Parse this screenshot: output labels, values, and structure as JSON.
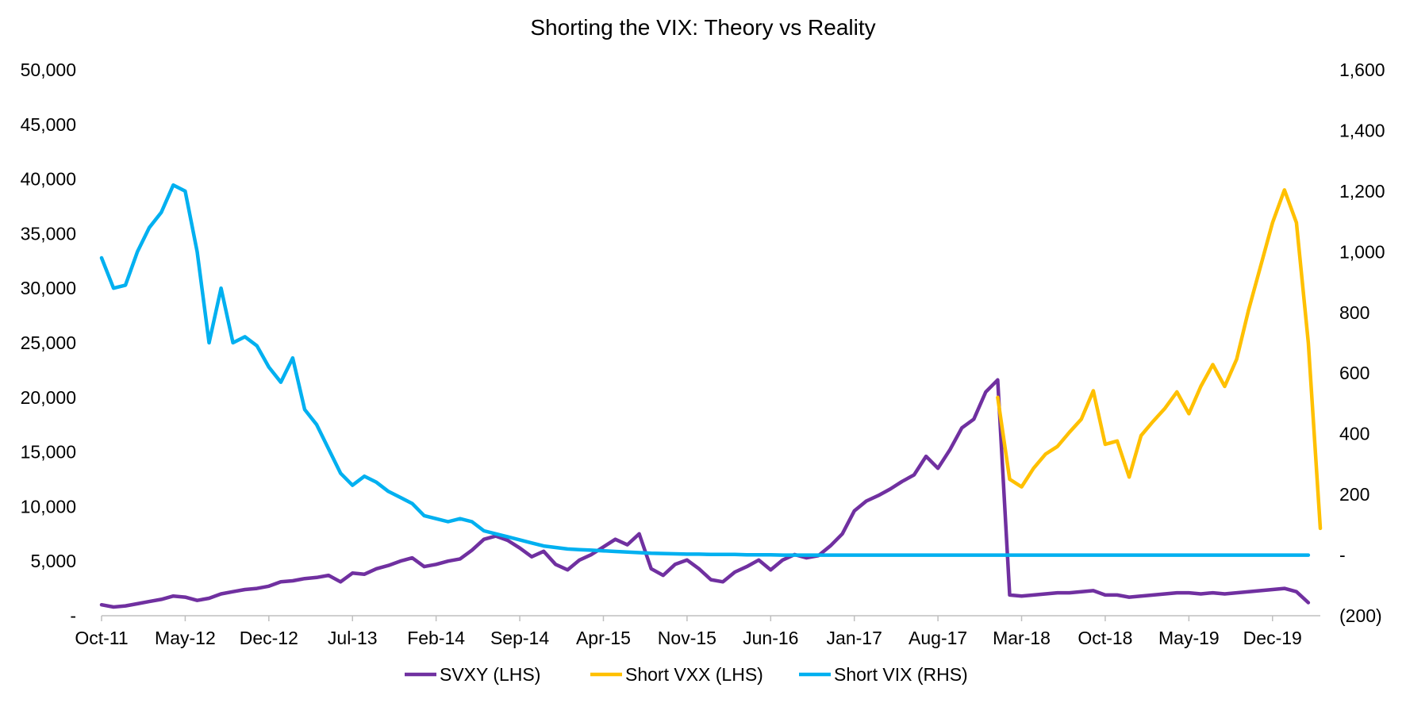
{
  "chart_data": {
    "type": "line",
    "title": "Shorting the VIX: Theory vs Reality",
    "x_tick_labels": [
      "Oct-11",
      "May-12",
      "Dec-12",
      "Jul-13",
      "Feb-14",
      "Sep-14",
      "Apr-15",
      "Nov-15",
      "Jun-16",
      "Jan-17",
      "Aug-17",
      "Mar-18",
      "Oct-18",
      "May-19",
      "Dec-19"
    ],
    "left_axis": {
      "ylim": [
        0,
        50000
      ],
      "tick_values": [
        0,
        5000,
        10000,
        15000,
        20000,
        25000,
        30000,
        35000,
        40000,
        45000,
        50000
      ],
      "tick_labels": [
        "-",
        "5,000",
        "10,000",
        "15,000",
        "20,000",
        "25,000",
        "30,000",
        "35,000",
        "40,000",
        "45,000",
        "50,000"
      ]
    },
    "right_axis": {
      "ylim": [
        -200,
        1600
      ],
      "tick_values": [
        -200,
        0,
        200,
        400,
        600,
        800,
        1000,
        1200,
        1400,
        1600
      ],
      "tick_labels": [
        "(200)",
        "-",
        "200",
        "400",
        "600",
        "800",
        "1,000",
        "1,200",
        "1,400",
        "1,600"
      ]
    },
    "grid": false,
    "legend_position": "bottom",
    "series": [
      {
        "name": "SVXY (LHS)",
        "axis": "left",
        "color": "#7030a0",
        "points": [
          [
            "2011-10",
            1000
          ],
          [
            "2011-11",
            800
          ],
          [
            "2011-12",
            900
          ],
          [
            "2012-01",
            1100
          ],
          [
            "2012-02",
            1300
          ],
          [
            "2012-03",
            1500
          ],
          [
            "2012-04",
            1800
          ],
          [
            "2012-05",
            1700
          ],
          [
            "2012-06",
            1400
          ],
          [
            "2012-07",
            1600
          ],
          [
            "2012-08",
            2000
          ],
          [
            "2012-09",
            2200
          ],
          [
            "2012-10",
            2400
          ],
          [
            "2012-11",
            2500
          ],
          [
            "2012-12",
            2700
          ],
          [
            "2013-01",
            3100
          ],
          [
            "2013-02",
            3200
          ],
          [
            "2013-03",
            3400
          ],
          [
            "2013-04",
            3500
          ],
          [
            "2013-05",
            3700
          ],
          [
            "2013-06",
            3100
          ],
          [
            "2013-07",
            3900
          ],
          [
            "2013-08",
            3800
          ],
          [
            "2013-09",
            4300
          ],
          [
            "2013-10",
            4600
          ],
          [
            "2013-11",
            5000
          ],
          [
            "2013-12",
            5300
          ],
          [
            "2014-01",
            4500
          ],
          [
            "2014-02",
            4700
          ],
          [
            "2014-03",
            5000
          ],
          [
            "2014-04",
            5200
          ],
          [
            "2014-05",
            6000
          ],
          [
            "2014-06",
            7000
          ],
          [
            "2014-07",
            7300
          ],
          [
            "2014-08",
            6900
          ],
          [
            "2014-09",
            6200
          ],
          [
            "2014-10",
            5400
          ],
          [
            "2014-11",
            5900
          ],
          [
            "2014-12",
            4700
          ],
          [
            "2015-01",
            4200
          ],
          [
            "2015-02",
            5100
          ],
          [
            "2015-03",
            5600
          ],
          [
            "2015-04",
            6300
          ],
          [
            "2015-05",
            7000
          ],
          [
            "2015-06",
            6500
          ],
          [
            "2015-07",
            7500
          ],
          [
            "2015-08",
            4300
          ],
          [
            "2015-09",
            3700
          ],
          [
            "2015-10",
            4700
          ],
          [
            "2015-11",
            5100
          ],
          [
            "2015-12",
            4300
          ],
          [
            "2016-01",
            3300
          ],
          [
            "2016-02",
            3100
          ],
          [
            "2016-03",
            4000
          ],
          [
            "2016-04",
            4500
          ],
          [
            "2016-05",
            5100
          ],
          [
            "2016-06",
            4200
          ],
          [
            "2016-07",
            5100
          ],
          [
            "2016-08",
            5600
          ],
          [
            "2016-09",
            5300
          ],
          [
            "2016-10",
            5500
          ],
          [
            "2016-11",
            6400
          ],
          [
            "2016-12",
            7500
          ],
          [
            "2017-01",
            9600
          ],
          [
            "2017-02",
            10500
          ],
          [
            "2017-03",
            11000
          ],
          [
            "2017-04",
            11600
          ],
          [
            "2017-05",
            12300
          ],
          [
            "2017-06",
            12900
          ],
          [
            "2017-07",
            14600
          ],
          [
            "2017-08",
            13500
          ],
          [
            "2017-09",
            15200
          ],
          [
            "2017-10",
            17200
          ],
          [
            "2017-11",
            18000
          ],
          [
            "2017-12",
            20500
          ],
          [
            "2018-01",
            21600
          ],
          [
            "2018-02",
            1900
          ],
          [
            "2018-03",
            1800
          ],
          [
            "2018-04",
            1900
          ],
          [
            "2018-05",
            2000
          ],
          [
            "2018-06",
            2100
          ],
          [
            "2018-07",
            2100
          ],
          [
            "2018-08",
            2200
          ],
          [
            "2018-09",
            2300
          ],
          [
            "2018-10",
            1900
          ],
          [
            "2018-11",
            1900
          ],
          [
            "2018-12",
            1700
          ],
          [
            "2019-01",
            1800
          ],
          [
            "2019-02",
            1900
          ],
          [
            "2019-03",
            2000
          ],
          [
            "2019-04",
            2100
          ],
          [
            "2019-05",
            2100
          ],
          [
            "2019-06",
            2000
          ],
          [
            "2019-07",
            2100
          ],
          [
            "2019-08",
            2000
          ],
          [
            "2019-09",
            2100
          ],
          [
            "2019-10",
            2200
          ],
          [
            "2019-11",
            2300
          ],
          [
            "2019-12",
            2400
          ],
          [
            "2020-01",
            2500
          ],
          [
            "2020-02",
            2200
          ],
          [
            "2020-03",
            1200
          ]
        ]
      },
      {
        "name": "Short VXX (LHS)",
        "axis": "left",
        "color": "#ffc000",
        "points": [
          [
            "2018-01",
            20000
          ],
          [
            "2018-02",
            12500
          ],
          [
            "2018-03",
            11800
          ],
          [
            "2018-04",
            13500
          ],
          [
            "2018-05",
            14800
          ],
          [
            "2018-06",
            15500
          ],
          [
            "2018-07",
            16800
          ],
          [
            "2018-08",
            18000
          ],
          [
            "2018-09",
            20600
          ],
          [
            "2018-10",
            15700
          ],
          [
            "2018-11",
            16000
          ],
          [
            "2018-12",
            12700
          ],
          [
            "2019-01",
            16500
          ],
          [
            "2019-02",
            17800
          ],
          [
            "2019-03",
            19000
          ],
          [
            "2019-04",
            20500
          ],
          [
            "2019-05",
            18500
          ],
          [
            "2019-06",
            21000
          ],
          [
            "2019-07",
            23000
          ],
          [
            "2019-08",
            21000
          ],
          [
            "2019-09",
            23500
          ],
          [
            "2019-10",
            28000
          ],
          [
            "2019-11",
            32000
          ],
          [
            "2019-12",
            36000
          ],
          [
            "2020-01",
            39000
          ],
          [
            "2020-02",
            36000
          ],
          [
            "2020-03",
            25000
          ],
          [
            "2020-04",
            8000
          ]
        ]
      },
      {
        "name": "Short VIX (RHS)",
        "axis": "right",
        "color": "#00b0f0",
        "points": [
          [
            "2011-10",
            980
          ],
          [
            "2011-11",
            880
          ],
          [
            "2011-12",
            890
          ],
          [
            "2012-01",
            1000
          ],
          [
            "2012-02",
            1080
          ],
          [
            "2012-03",
            1130
          ],
          [
            "2012-04",
            1220
          ],
          [
            "2012-05",
            1200
          ],
          [
            "2012-06",
            1000
          ],
          [
            "2012-07",
            700
          ],
          [
            "2012-08",
            880
          ],
          [
            "2012-09",
            700
          ],
          [
            "2012-10",
            720
          ],
          [
            "2012-11",
            690
          ],
          [
            "2012-12",
            620
          ],
          [
            "2013-01",
            570
          ],
          [
            "2013-02",
            650
          ],
          [
            "2013-03",
            480
          ],
          [
            "2013-04",
            430
          ],
          [
            "2013-05",
            350
          ],
          [
            "2013-06",
            270
          ],
          [
            "2013-07",
            230
          ],
          [
            "2013-08",
            260
          ],
          [
            "2013-09",
            240
          ],
          [
            "2013-10",
            210
          ],
          [
            "2013-11",
            190
          ],
          [
            "2013-12",
            170
          ],
          [
            "2014-01",
            130
          ],
          [
            "2014-02",
            120
          ],
          [
            "2014-03",
            110
          ],
          [
            "2014-04",
            120
          ],
          [
            "2014-05",
            110
          ],
          [
            "2014-06",
            80
          ],
          [
            "2014-07",
            70
          ],
          [
            "2014-08",
            60
          ],
          [
            "2014-09",
            50
          ],
          [
            "2014-10",
            40
          ],
          [
            "2014-11",
            30
          ],
          [
            "2014-12",
            25
          ],
          [
            "2015-01",
            20
          ],
          [
            "2015-02",
            18
          ],
          [
            "2015-03",
            16
          ],
          [
            "2015-04",
            14
          ],
          [
            "2015-05",
            12
          ],
          [
            "2015-06",
            10
          ],
          [
            "2015-07",
            8
          ],
          [
            "2015-08",
            6
          ],
          [
            "2015-09",
            5
          ],
          [
            "2015-10",
            4
          ],
          [
            "2015-11",
            3
          ],
          [
            "2015-12",
            3
          ],
          [
            "2016-01",
            2
          ],
          [
            "2016-02",
            2
          ],
          [
            "2016-03",
            2
          ],
          [
            "2016-04",
            1
          ],
          [
            "2016-05",
            1
          ],
          [
            "2016-06",
            1
          ],
          [
            "2016-07",
            0
          ],
          [
            "2016-08",
            0
          ],
          [
            "2016-09",
            0
          ],
          [
            "2016-10",
            0
          ],
          [
            "2016-11",
            0
          ],
          [
            "2016-12",
            0
          ],
          [
            "2017-01",
            0
          ],
          [
            "2017-06",
            0
          ],
          [
            "2018-01",
            0
          ],
          [
            "2018-06",
            0
          ],
          [
            "2019-01",
            0
          ],
          [
            "2019-06",
            0
          ],
          [
            "2020-01",
            0
          ],
          [
            "2020-03",
            0
          ]
        ]
      }
    ],
    "legend": [
      {
        "label": "SVXY (LHS)",
        "color": "#7030a0"
      },
      {
        "label": "Short VXX (LHS)",
        "color": "#ffc000"
      },
      {
        "label": "Short VIX (RHS)",
        "color": "#00b0f0"
      }
    ]
  }
}
